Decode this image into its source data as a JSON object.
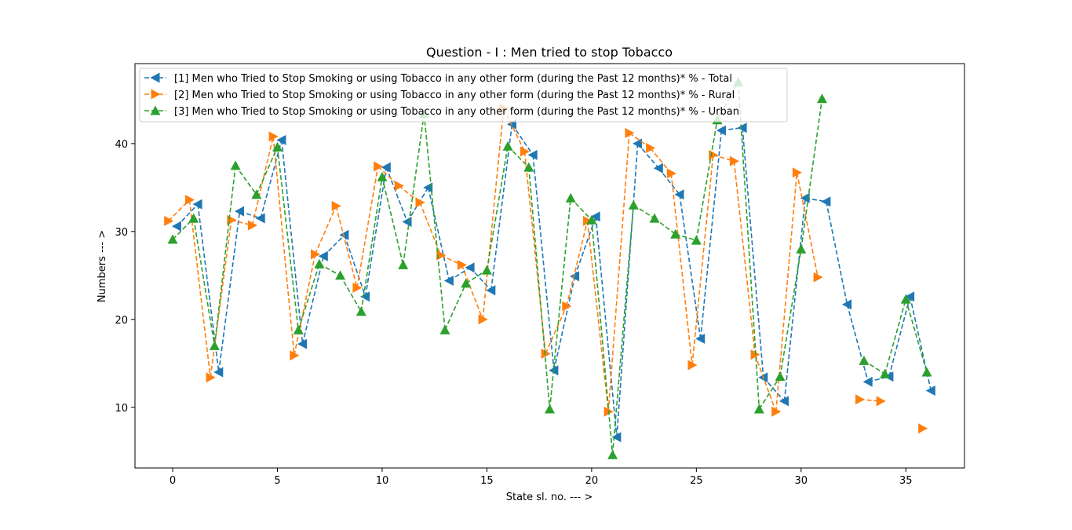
{
  "chart_data": {
    "type": "line",
    "title": "Question - I : Men tried to stop Tobacco",
    "xlabel": "State sl. no. --- >",
    "ylabel": "Numbers --- >",
    "xlim": [
      -1.8,
      37.8
    ],
    "ylim": [
      3.1,
      49.1
    ],
    "xticks": [
      0,
      5,
      10,
      15,
      20,
      25,
      30,
      35
    ],
    "yticks": [
      10,
      20,
      30,
      40
    ],
    "grid": false,
    "legend_position": "top-left",
    "series": [
      {
        "name": "[1] Men who Tried to Stop Smoking or using Tobacco in any other form (during the Past 12 months)* % - Total",
        "color": "#1f77b4",
        "marker": "triangle-left",
        "offset": 0.2,
        "x": [
          0,
          1,
          2,
          3,
          4,
          5,
          6,
          7,
          8,
          9,
          10,
          11,
          12,
          13,
          14,
          15,
          16,
          17,
          18,
          19,
          20,
          21,
          22,
          23,
          24,
          25,
          26,
          27,
          28,
          29,
          30,
          31,
          32,
          33,
          34,
          35,
          36
        ],
        "values": [
          30.6,
          33.1,
          14.0,
          32.3,
          31.5,
          40.4,
          17.2,
          27.2,
          29.6,
          22.6,
          37.3,
          31.1,
          35.0,
          24.4,
          25.9,
          23.3,
          42.2,
          38.7,
          14.2,
          24.9,
          31.7,
          6.6,
          40.0,
          37.2,
          34.2,
          17.8,
          41.5,
          41.8,
          13.4,
          10.7,
          33.8,
          33.4,
          21.7,
          12.9,
          13.5,
          22.6,
          11.9
        ]
      },
      {
        "name": "[2] Men who Tried to Stop Smoking or using Tobacco in any other form (during the Past 12 months)* % - Rural",
        "color": "#ff7f0e",
        "marker": "triangle-right",
        "offset": -0.2,
        "x": [
          0,
          1,
          2,
          3,
          4,
          5,
          6,
          7,
          8,
          9,
          10,
          11,
          12,
          13,
          14,
          15,
          16,
          17,
          18,
          19,
          20,
          21,
          22,
          23,
          24,
          25,
          26,
          27,
          28,
          29,
          30,
          31,
          33,
          34,
          36
        ],
        "values": [
          31.2,
          33.6,
          13.4,
          31.3,
          30.7,
          40.8,
          15.9,
          27.4,
          32.9,
          23.6,
          37.4,
          35.2,
          33.3,
          27.3,
          26.2,
          20.0,
          44.0,
          39.1,
          16.1,
          21.5,
          31.2,
          9.5,
          41.2,
          39.5,
          36.6,
          14.8,
          38.7,
          38.0,
          16.0,
          9.5,
          36.7,
          24.8,
          10.9,
          10.7,
          7.6
        ]
      },
      {
        "name": "[3] Men who Tried to Stop Smoking or using Tobacco in any other form (during the Past 12 months)* % - Urban",
        "color": "#2ca02c",
        "marker": "triangle-up",
        "offset": 0,
        "x": [
          0,
          1,
          2,
          3,
          4,
          5,
          6,
          7,
          8,
          9,
          10,
          11,
          12,
          13,
          14,
          15,
          16,
          17,
          18,
          19,
          20,
          21,
          22,
          23,
          24,
          25,
          26,
          27,
          28,
          29,
          30,
          31,
          33,
          34,
          35,
          36
        ],
        "values": [
          29.1,
          31.5,
          17.0,
          37.5,
          34.2,
          39.6,
          18.8,
          26.3,
          25.0,
          20.9,
          36.2,
          26.2,
          43.4,
          18.8,
          24.1,
          25.6,
          39.7,
          37.3,
          9.8,
          33.8,
          31.3,
          4.6,
          33.0,
          31.5,
          29.7,
          29.0,
          42.7,
          47.0,
          9.8,
          13.5,
          28.0,
          45.1,
          15.3,
          13.8,
          22.3,
          14.0
        ]
      }
    ]
  }
}
